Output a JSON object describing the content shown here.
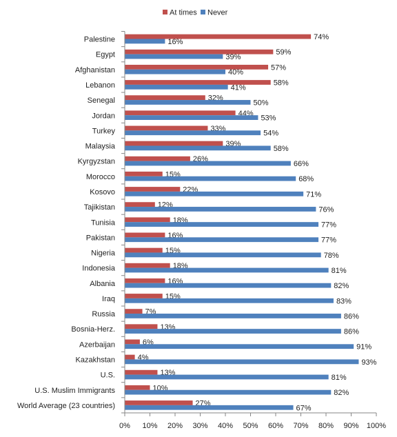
{
  "chart_data": {
    "type": "bar",
    "orientation": "horizontal",
    "categories": [
      "Palestine",
      "Egypt",
      "Afghanistan",
      "Lebanon",
      "Senegal",
      "Jordan",
      "Turkey",
      "Malaysia",
      "Kyrgyzstan",
      "Morocco",
      "Kosovo",
      "Tajikistan",
      "Tunisia",
      "Pakistan",
      "Nigeria",
      "Indonesia",
      "Albania",
      "Iraq",
      "Russia",
      "Bosnia-Herz.",
      "Azerbaijan",
      "Kazakhstan",
      "U.S.",
      "U.S. Muslim Immigrants",
      "World Average (23 countries)"
    ],
    "series": [
      {
        "name": "At times",
        "color": "#C0504D",
        "values": [
          74,
          59,
          57,
          58,
          32,
          44,
          33,
          39,
          26,
          15,
          22,
          12,
          18,
          16,
          15,
          18,
          16,
          15,
          7,
          13,
          6,
          4,
          13,
          10,
          27
        ]
      },
      {
        "name": "Never",
        "color": "#4F81BD",
        "values": [
          16,
          39,
          40,
          41,
          50,
          53,
          54,
          58,
          66,
          68,
          71,
          76,
          77,
          77,
          78,
          81,
          82,
          83,
          86,
          86,
          91,
          93,
          81,
          82,
          67
        ]
      }
    ],
    "value_suffix": "%",
    "xlim": [
      0,
      100
    ],
    "xticks": [
      0,
      10,
      20,
      30,
      40,
      50,
      60,
      70,
      80,
      90,
      100
    ],
    "tick_labels": [
      "0%",
      "10%",
      "20%",
      "30%",
      "40%",
      "50%",
      "60%",
      "70%",
      "80%",
      "90%",
      "100%"
    ],
    "legend_position": "top-center",
    "grid": false
  }
}
